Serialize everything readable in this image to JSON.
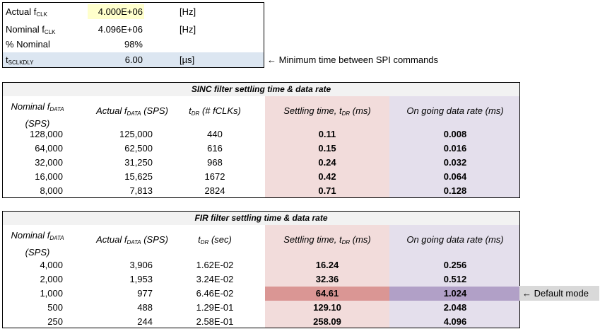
{
  "params": [
    {
      "label": "Actual f",
      "sub": "CLK",
      "value": "4.000E+06",
      "unit": "[Hz]"
    },
    {
      "label": "Nominal f",
      "sub": "CLK",
      "value": "4.096E+06",
      "unit": "[Hz]"
    },
    {
      "label": "% Nominal",
      "sub": "",
      "value": "98%",
      "unit": ""
    },
    {
      "label": "t",
      "sub": "SCLKDLY",
      "value": "6.00",
      "unit": "[µs]"
    }
  ],
  "params_note": "← Minimum time between SPI commands",
  "sinc": {
    "title": "SINC filter settling time & data rate",
    "headers": {
      "nominal": "Nominal f",
      "nominal_sub": "DATA",
      "nominal_unit": "(SPS)",
      "actual": "Actual f",
      "actual_sub": "DATA",
      "actual_unit": " (SPS)",
      "tdr": "t",
      "tdr_sub": "DR",
      "tdr_unit": " (# fCLKs)",
      "settling": "Settling time, t",
      "settling_sub": "DR",
      "settling_unit": " (ms)",
      "rate": "On going data rate (ms)"
    },
    "rows": [
      [
        "128,000",
        "125,000",
        "440",
        "0.11",
        "0.008"
      ],
      [
        "64,000",
        "62,500",
        "616",
        "0.15",
        "0.016"
      ],
      [
        "32,000",
        "31,250",
        "968",
        "0.24",
        "0.032"
      ],
      [
        "16,000",
        "15,625",
        "1672",
        "0.42",
        "0.064"
      ],
      [
        "8,000",
        "7,813",
        "2824",
        "0.71",
        "0.128"
      ]
    ]
  },
  "fir": {
    "title": "FIR filter settling time & data rate",
    "headers": {
      "nominal": "Nominal f",
      "nominal_sub": "DATA",
      "nominal_unit": "(SPS)",
      "actual": "Actual f",
      "actual_sub": "DATA",
      "actual_unit": " (SPS)",
      "tdr": "t",
      "tdr_sub": "DR",
      "tdr_unit": " (sec)",
      "settling": "Settling time, t",
      "settling_sub": "DR",
      "settling_unit": " (ms)",
      "rate": "On going data rate (ms)"
    },
    "rows": [
      [
        "4,000",
        "3,906",
        "1.62E-02",
        "16.24",
        "0.256"
      ],
      [
        "2,000",
        "1,953",
        "3.24E-02",
        "32.36",
        "0.512"
      ],
      [
        "1,000",
        "977",
        "6.46E-02",
        "64.61",
        "1.024"
      ],
      [
        "500",
        "488",
        "1.29E-01",
        "129.10",
        "2.048"
      ],
      [
        "250",
        "244",
        "2.58E-01",
        "258.09",
        "4.096"
      ]
    ],
    "default_row": 2,
    "default_note": "← Default mode"
  },
  "colors": {
    "yellow": "#ffffcc",
    "blue_row": "#dce6f1",
    "pink": "#f2dcdb",
    "purple": "#e4dfec",
    "pink_hl": "#da9694",
    "purple_hl": "#b1a0c7",
    "note_bg": "#d9d9d9"
  }
}
